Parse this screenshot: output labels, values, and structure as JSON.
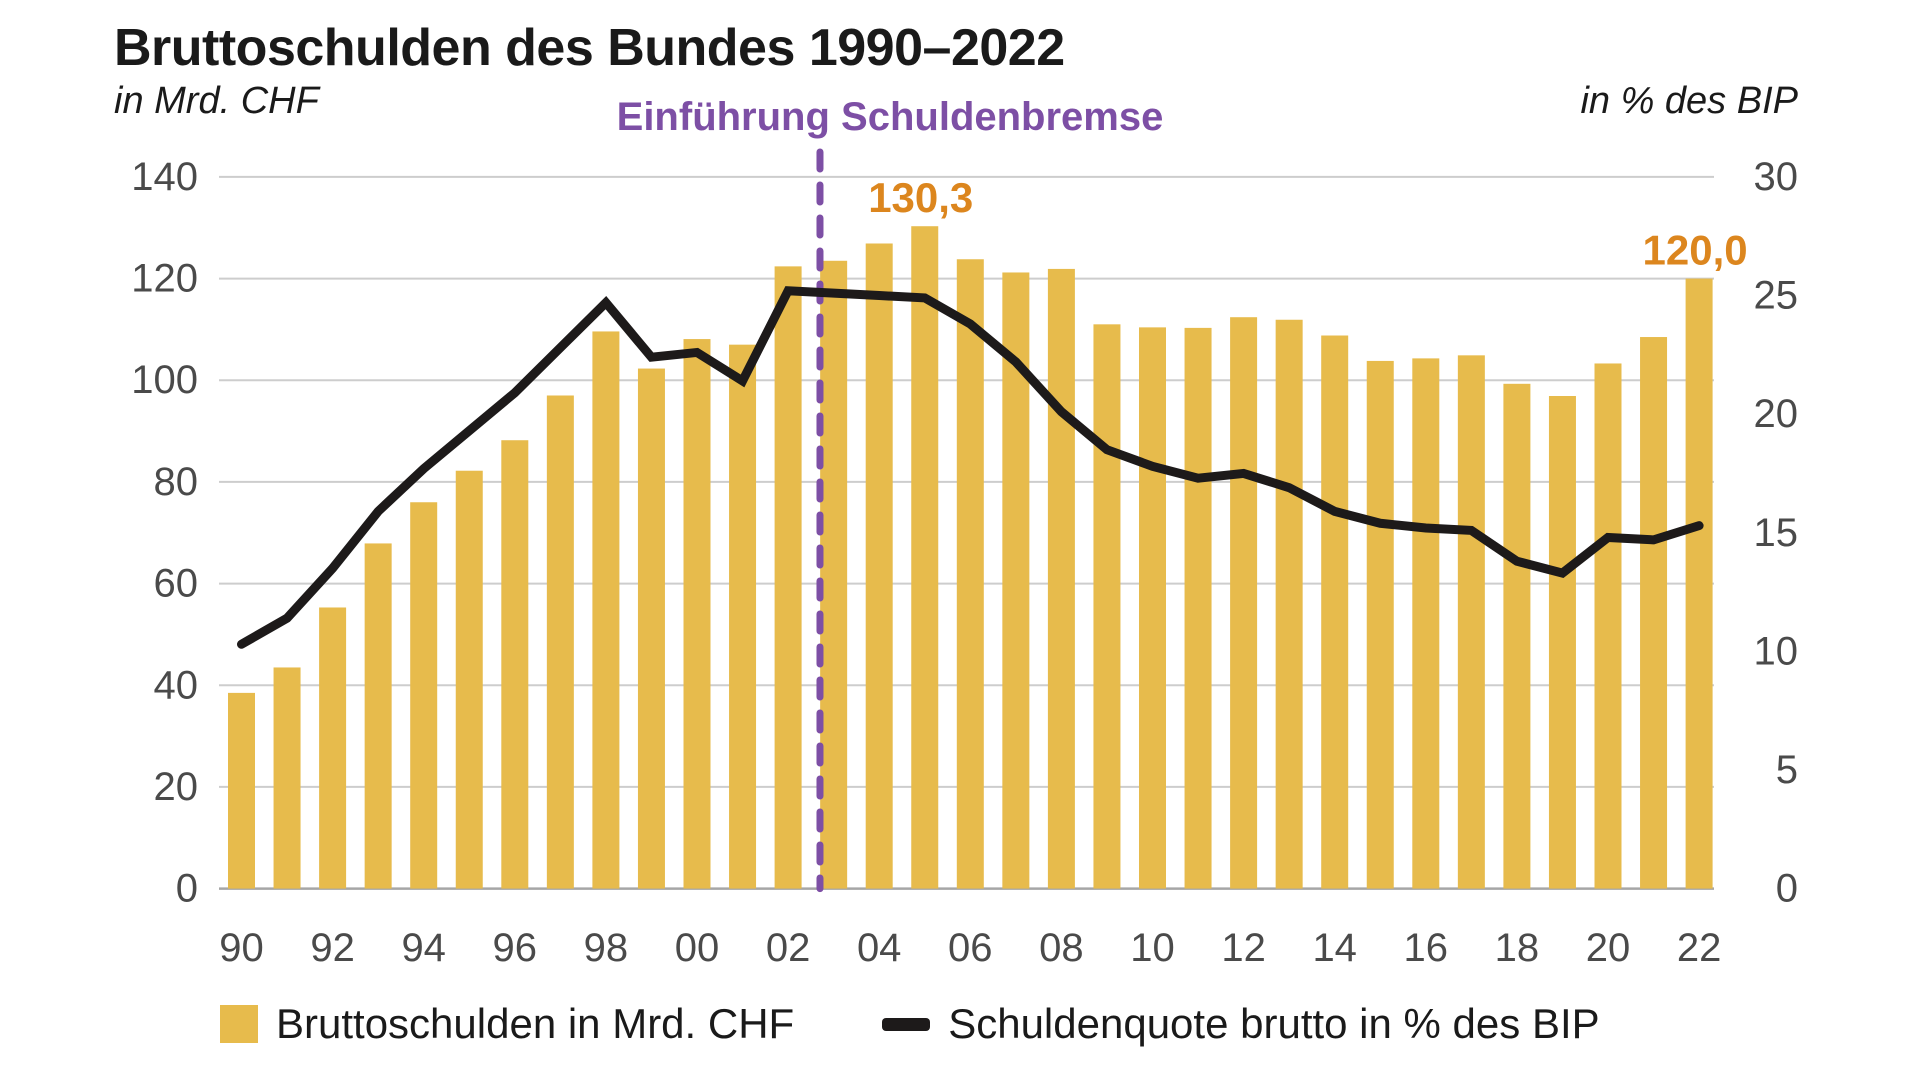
{
  "title": "Bruttoschulden des Bundes 1990–2022",
  "left_axis": {
    "unit": "in Mrd. CHF",
    "ticks": [
      0,
      20,
      40,
      60,
      80,
      100,
      120,
      140
    ]
  },
  "right_axis": {
    "unit": "in % des BIP",
    "ticks": [
      0,
      5,
      10,
      15,
      20,
      25,
      30
    ]
  },
  "annotation": {
    "text": "Einführung Schuldenbremse",
    "year_position": 2002.7
  },
  "legend": [
    {
      "label": "Bruttoschulden in Mrd. CHF",
      "marker": "square"
    },
    {
      "label": "Schuldenquote brutto in % des BIP",
      "marker": "line"
    }
  ],
  "colors": {
    "bar": "#E7BB4C",
    "line": "#1d1a1a",
    "purple": "#7D4FA5",
    "orange": "#DC861E",
    "grid": "#CDCDCD",
    "baseline": "#A6A6A6",
    "tick_text": "#4A4A4A"
  },
  "chart_data": {
    "type": "bar+line",
    "x": [
      1990,
      1991,
      1992,
      1993,
      1994,
      1995,
      1996,
      1997,
      1998,
      1999,
      2000,
      2001,
      2002,
      2003,
      2004,
      2005,
      2006,
      2007,
      2008,
      2009,
      2010,
      2011,
      2012,
      2013,
      2014,
      2015,
      2016,
      2017,
      2018,
      2019,
      2020,
      2021,
      2022
    ],
    "x_tick_labels": [
      "90",
      "92",
      "94",
      "96",
      "98",
      "00",
      "02",
      "04",
      "06",
      "08",
      "10",
      "12",
      "14",
      "16",
      "18",
      "20",
      "22"
    ],
    "series": [
      {
        "name": "Bruttoschulden in Mrd. CHF",
        "type": "bar",
        "axis": "left",
        "values": [
          38.5,
          43.5,
          55.3,
          67.9,
          76.0,
          82.2,
          88.2,
          97.0,
          109.6,
          102.3,
          108.1,
          107.0,
          122.4,
          123.5,
          126.9,
          130.3,
          123.8,
          121.2,
          121.9,
          111.0,
          110.4,
          110.3,
          112.4,
          111.9,
          108.8,
          103.8,
          104.3,
          104.9,
          99.3,
          96.9,
          103.3,
          108.5,
          120.0
        ]
      },
      {
        "name": "Schuldenquote brutto in % des BIP",
        "type": "line",
        "axis": "right",
        "values": [
          10.3,
          11.4,
          13.5,
          15.9,
          17.7,
          19.3,
          20.9,
          22.8,
          24.7,
          22.4,
          22.6,
          21.4,
          25.2,
          25.1,
          25.0,
          24.9,
          23.8,
          22.2,
          20.1,
          18.5,
          17.8,
          17.3,
          17.5,
          16.9,
          15.9,
          15.4,
          15.2,
          15.1,
          13.8,
          13.3,
          14.8,
          14.7,
          15.3
        ]
      }
    ],
    "data_labels": [
      {
        "year": 2005,
        "text": "130,3"
      },
      {
        "year": 2022,
        "text": "120,0"
      }
    ],
    "left_ylim": [
      0,
      140
    ],
    "right_ylim": [
      0,
      30
    ],
    "grid": true,
    "legend_position": "bottom"
  }
}
